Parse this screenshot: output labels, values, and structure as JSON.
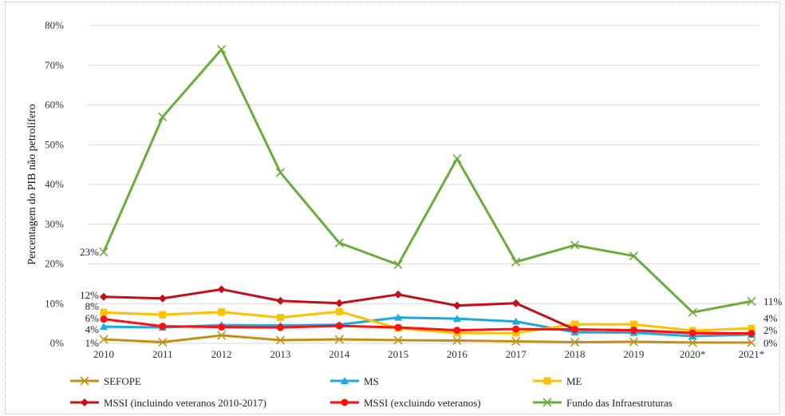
{
  "chart_data": {
    "type": "line",
    "ylabel": "Percentagem do PIB não petrolífero",
    "xlabel": "",
    "title": "",
    "ylim": [
      0,
      80
    ],
    "yticks": [
      "0%",
      "10%",
      "20%",
      "30%",
      "40%",
      "50%",
      "60%",
      "70%",
      "80%"
    ],
    "categories": [
      "2010",
      "2011",
      "2012",
      "2013",
      "2014",
      "2015",
      "2016",
      "2017",
      "2018",
      "2019",
      "2020*",
      "2021*"
    ],
    "grid": true,
    "legend_position": "bottom",
    "series": [
      {
        "name": "SEFOPE",
        "color": "#c09018",
        "marker": "x",
        "values": [
          1.0,
          0.3,
          2.0,
          0.8,
          1.0,
          0.8,
          0.7,
          0.5,
          0.3,
          0.4,
          0.2,
          0.2
        ]
      },
      {
        "name": "MS",
        "color": "#1aa9e0",
        "marker": "triangle",
        "values": [
          4.2,
          4.0,
          4.6,
          4.5,
          4.7,
          6.5,
          6.2,
          5.5,
          2.8,
          2.7,
          1.8,
          2.2
        ]
      },
      {
        "name": "ME",
        "color": "#ffc000",
        "marker": "square",
        "values": [
          7.8,
          7.2,
          7.9,
          6.5,
          8.0,
          3.8,
          2.6,
          2.6,
          4.8,
          4.8,
          3.2,
          3.8
        ]
      },
      {
        "name": "MSSI (incluindo veteranos 2010-2017)",
        "color": "#c0101a",
        "marker": "diamond",
        "values": [
          11.7,
          11.3,
          13.6,
          10.7,
          10.1,
          12.3,
          9.5,
          10.1,
          3.5,
          3.3,
          2.6,
          2.5
        ]
      },
      {
        "name": "MSSI (excluindo veteranos)",
        "color": "#ff1010",
        "marker": "circle",
        "values": [
          6.1,
          4.3,
          4.1,
          4.0,
          4.4,
          4.0,
          3.3,
          3.6,
          3.5,
          3.3,
          2.6,
          2.5
        ]
      },
      {
        "name": "Fundo das Infraestruturas",
        "color": "#6aac3c",
        "marker": "x",
        "values": [
          23.0,
          57.0,
          74.0,
          43.0,
          25.3,
          19.8,
          46.5,
          20.5,
          24.7,
          22.0,
          7.8,
          10.6
        ]
      }
    ],
    "data_labels": {
      "left": [
        "23%",
        "12%",
        "8%",
        "6%",
        "4%",
        "1%"
      ],
      "right": [
        "11%",
        "4%",
        "2%",
        "0%"
      ]
    }
  }
}
